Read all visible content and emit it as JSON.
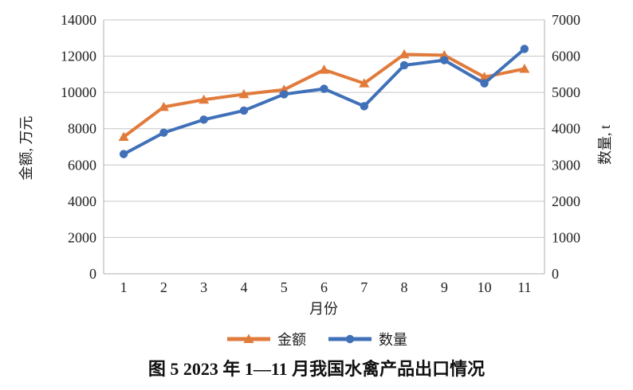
{
  "caption": "图 5 2023 年 1—11 月我国水禽产品出口情况",
  "chart_data": {
    "type": "line",
    "x": [
      "1",
      "2",
      "3",
      "4",
      "5",
      "6",
      "7",
      "8",
      "9",
      "10",
      "11"
    ],
    "xlabel": "月份",
    "series": [
      {
        "name": "金额",
        "axis": "left",
        "color": "#E17B3B",
        "marker": "triangle",
        "values": [
          7550,
          9200,
          9600,
          9900,
          10150,
          11250,
          10500,
          12100,
          12050,
          10850,
          11300
        ]
      },
      {
        "name": "数量",
        "axis": "right",
        "color": "#4070B8",
        "marker": "circle",
        "values": [
          3300,
          3890,
          4250,
          4500,
          4950,
          5100,
          4620,
          5750,
          5890,
          5250,
          6200
        ]
      }
    ],
    "left_axis": {
      "title": "金额, 万元",
      "min": 0,
      "max": 14000,
      "ticks": [
        0,
        2000,
        4000,
        6000,
        8000,
        10000,
        12000,
        14000
      ]
    },
    "right_axis": {
      "title": "数量, t",
      "min": 0,
      "max": 7000,
      "ticks": [
        0,
        1000,
        2000,
        3000,
        4000,
        5000,
        6000,
        7000
      ]
    },
    "grid": true,
    "legend_position": "bottom"
  },
  "colors": {
    "grid": "#C6C6C6",
    "axis": "#AFAFAF",
    "text": "#1F1F1F"
  }
}
